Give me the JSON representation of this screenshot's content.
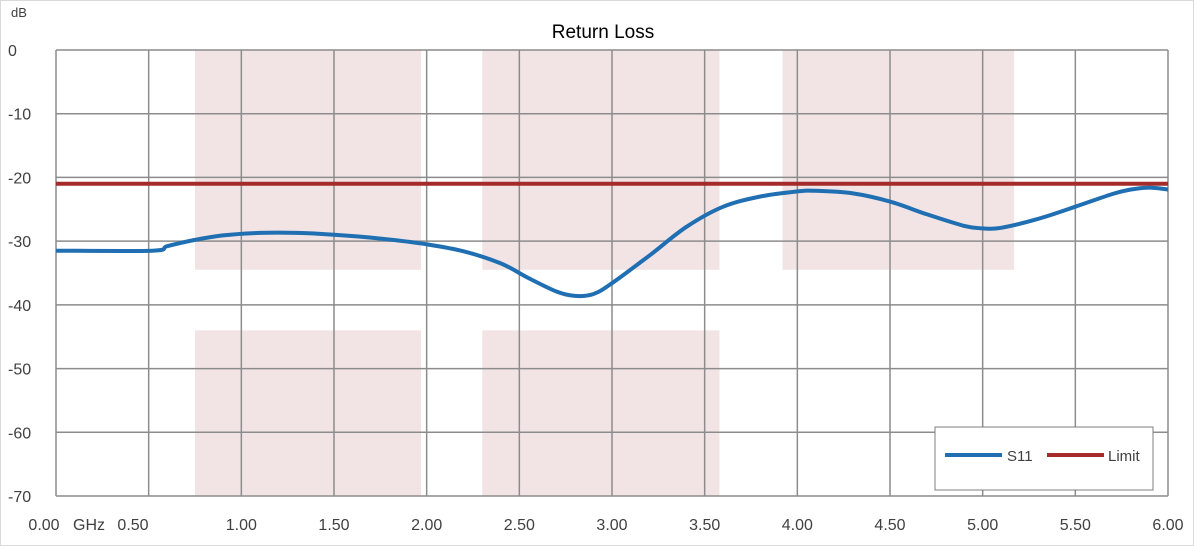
{
  "chart_data": {
    "type": "line",
    "title": "Return Loss",
    "ylabel": "dB",
    "xunit": "GHz",
    "xlim": [
      0,
      6
    ],
    "ylim": [
      -70,
      0
    ],
    "x_ticks": [
      "0.00",
      "0.50",
      "1.00",
      "1.50",
      "2.00",
      "2.50",
      "3.00",
      "3.50",
      "4.00",
      "4.50",
      "5.00",
      "5.50",
      "6.00"
    ],
    "y_ticks": [
      "0",
      "-10",
      "-20",
      "-30",
      "-40",
      "-50",
      "-60",
      "-70"
    ],
    "grid": true,
    "legend_position": "bottom-right",
    "shaded_regions": [
      {
        "x": [
          0.75,
          1.97
        ],
        "y": [
          -34.5,
          0
        ]
      },
      {
        "x": [
          2.3,
          3.58
        ],
        "y": [
          -34.5,
          0
        ]
      },
      {
        "x": [
          3.92,
          5.17
        ],
        "y": [
          -34.5,
          0
        ]
      },
      {
        "x": [
          0.75,
          1.97
        ],
        "y": [
          -70,
          -44
        ]
      },
      {
        "x": [
          2.3,
          3.58
        ],
        "y": [
          -70,
          -44
        ]
      }
    ],
    "series": [
      {
        "name": "S11",
        "color": "#1f6fb2",
        "x": [
          0.0,
          0.52,
          0.6,
          0.75,
          0.9,
          1.1,
          1.3,
          1.5,
          1.75,
          2.0,
          2.2,
          2.4,
          2.55,
          2.7,
          2.8,
          2.9,
          3.0,
          3.2,
          3.4,
          3.6,
          3.8,
          4.0,
          4.1,
          4.3,
          4.5,
          4.7,
          4.9,
          5.0,
          5.1,
          5.3,
          5.5,
          5.7,
          5.8,
          5.9,
          6.0
        ],
        "y": [
          -31.5,
          -31.5,
          -30.8,
          -29.8,
          -29.1,
          -28.7,
          -28.7,
          -29.0,
          -29.6,
          -30.5,
          -31.6,
          -33.5,
          -35.8,
          -37.9,
          -38.6,
          -38.3,
          -36.6,
          -32.3,
          -27.8,
          -24.6,
          -23.0,
          -22.2,
          -22.1,
          -22.5,
          -23.8,
          -25.8,
          -27.6,
          -28.0,
          -27.9,
          -26.5,
          -24.6,
          -22.6,
          -21.9,
          -21.6,
          -21.9
        ]
      },
      {
        "name": "Limit",
        "color": "#a52a2a",
        "x": [
          0.0,
          6.0
        ],
        "y": [
          -21,
          -21
        ]
      }
    ]
  }
}
